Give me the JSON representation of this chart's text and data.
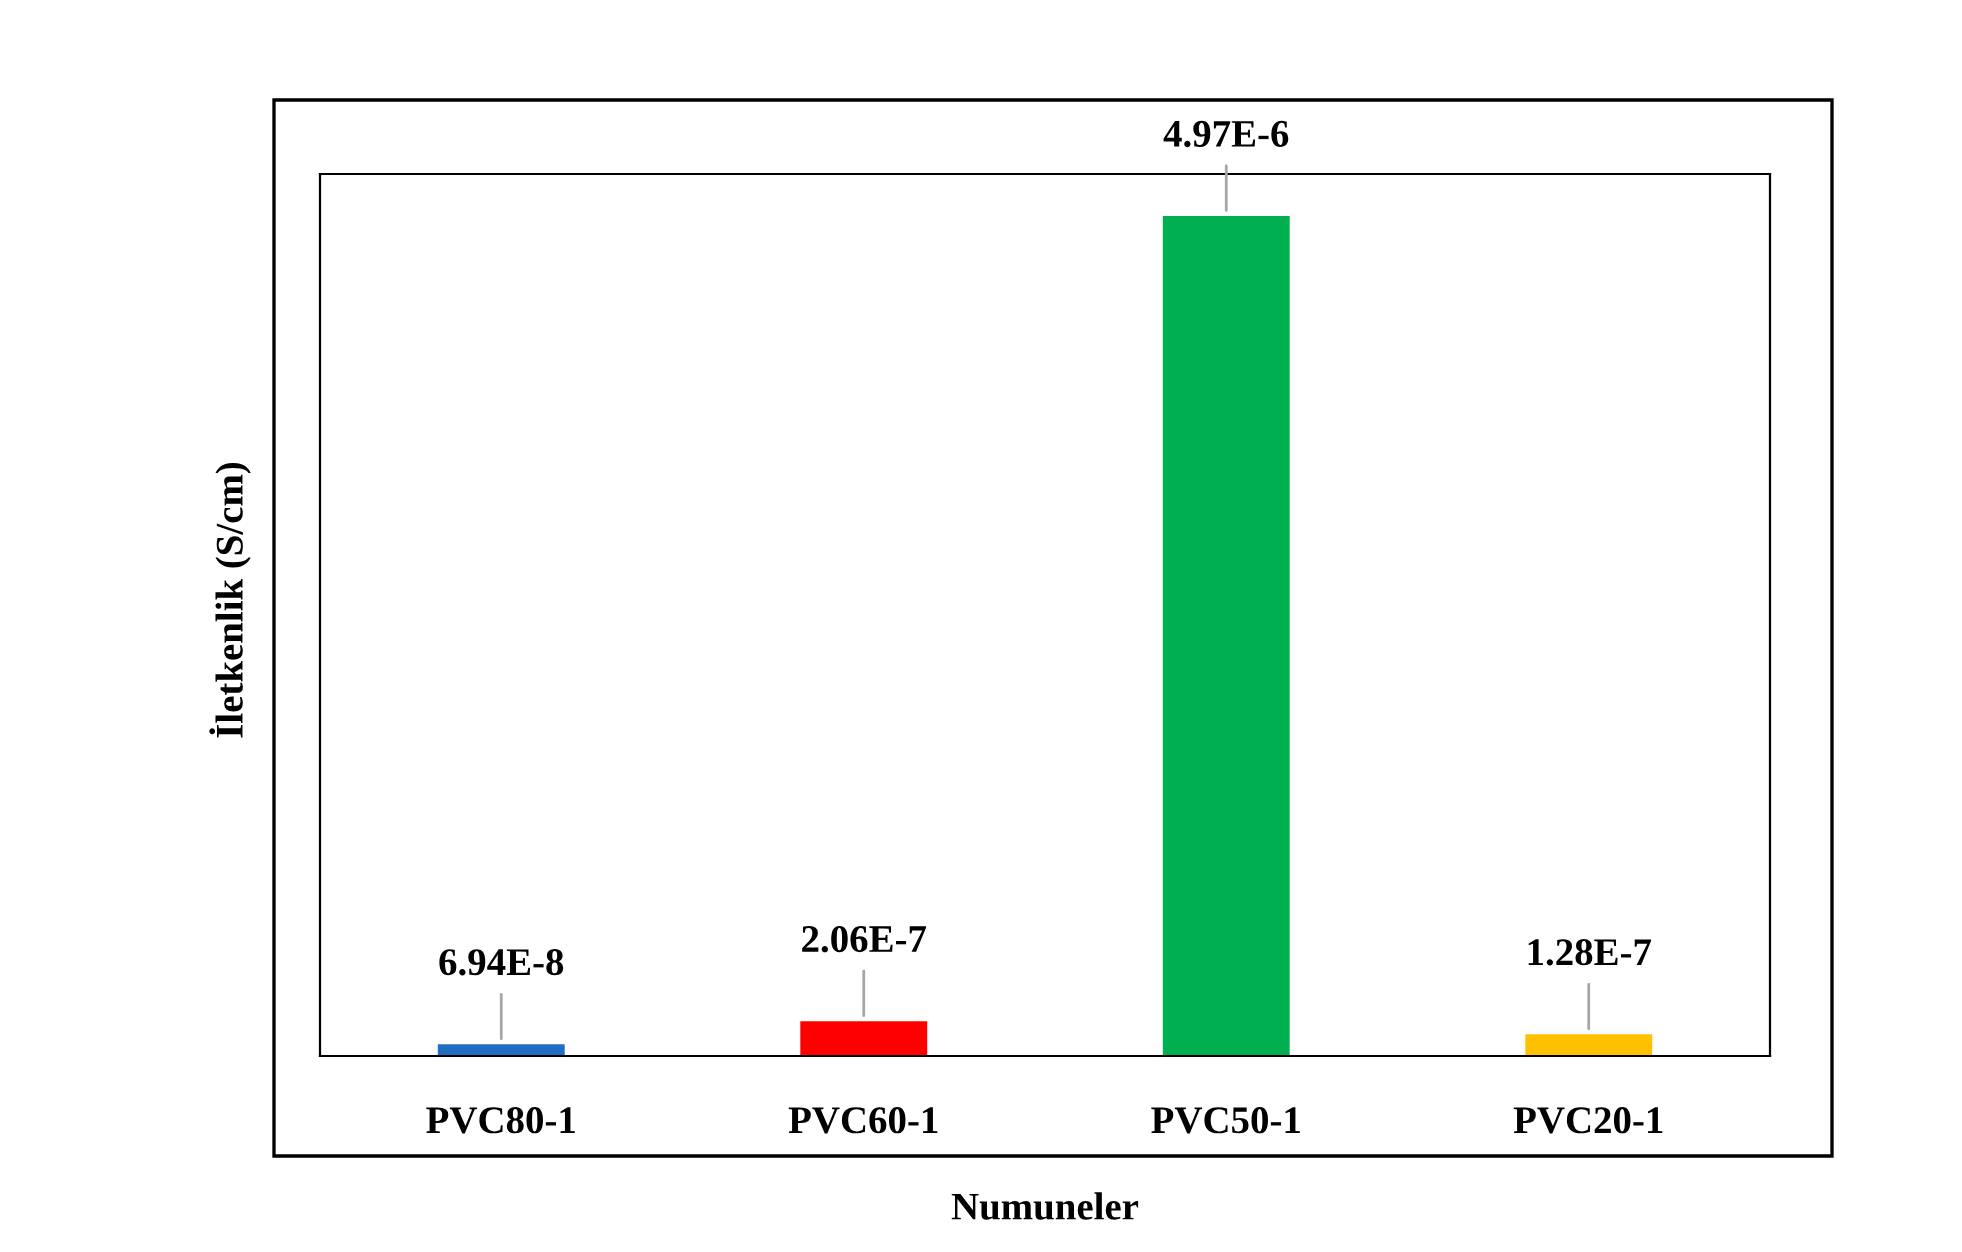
{
  "chart_data": {
    "type": "bar",
    "xlabel": "Numuneler",
    "ylabel": "İletkenlik (S/cm)",
    "categories": [
      "PVC80-1",
      "PVC60-1",
      "PVC50-1",
      "PVC20-1"
    ],
    "values": [
      6.94e-08,
      2.06e-07,
      4.97e-06,
      1.28e-07
    ],
    "colors": [
      "#1f6fc5",
      "#ff0000",
      "#00b050",
      "#ffc000"
    ],
    "value_labels": [
      "6.94E-8",
      "2.06E-7",
      "4.97E-6",
      "1.28E-7"
    ],
    "grid": false,
    "legend": false
  }
}
